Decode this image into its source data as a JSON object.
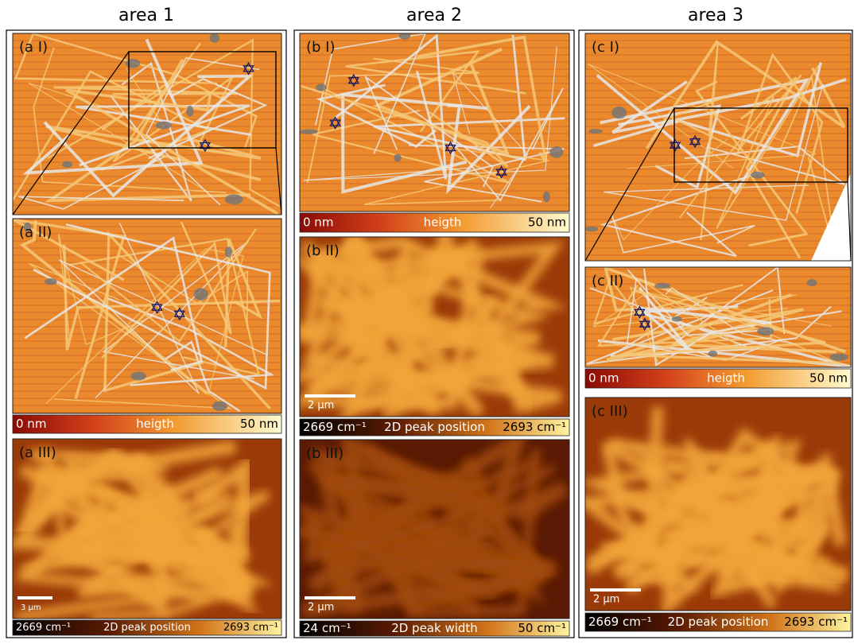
{
  "columns": [
    {
      "title": "area 1",
      "panels": [
        {
          "label": "(a I)"
        },
        {
          "label": "(a II)"
        },
        {
          "label": "(a III)",
          "scale_bar": "3 µm"
        }
      ],
      "colorbars": [
        {
          "min": "0 nm",
          "name": "heigth",
          "max": "50 nm"
        },
        {
          "min": "2669 cm⁻¹",
          "name": "2D peak position",
          "max": "2693 cm⁻¹"
        }
      ]
    },
    {
      "title": "area 2",
      "panels": [
        {
          "label": "(b I)"
        },
        {
          "label": "(b II)",
          "scale_bar": "2 µm"
        },
        {
          "label": "(b III)",
          "scale_bar": "2 µm"
        }
      ],
      "colorbars": [
        {
          "min": "0 nm",
          "name": "heigth",
          "max": "50 nm"
        },
        {
          "min": "2669 cm⁻¹",
          "name": "2D peak position",
          "max": "2693 cm⁻¹"
        },
        {
          "min": "24 cm⁻¹",
          "name": "2D peak width",
          "max": "50 cm⁻¹"
        }
      ]
    },
    {
      "title": "area 3",
      "panels": [
        {
          "label": "(c I)"
        },
        {
          "label": "(c II)"
        },
        {
          "label": "(c III)",
          "scale_bar": "2 µm"
        }
      ],
      "colorbars": [
        {
          "min": "0 nm",
          "name": "heigth",
          "max": "50 nm"
        },
        {
          "min": "2669 cm⁻¹",
          "name": "2D peak position",
          "max": "2693 cm⁻¹"
        }
      ]
    }
  ]
}
